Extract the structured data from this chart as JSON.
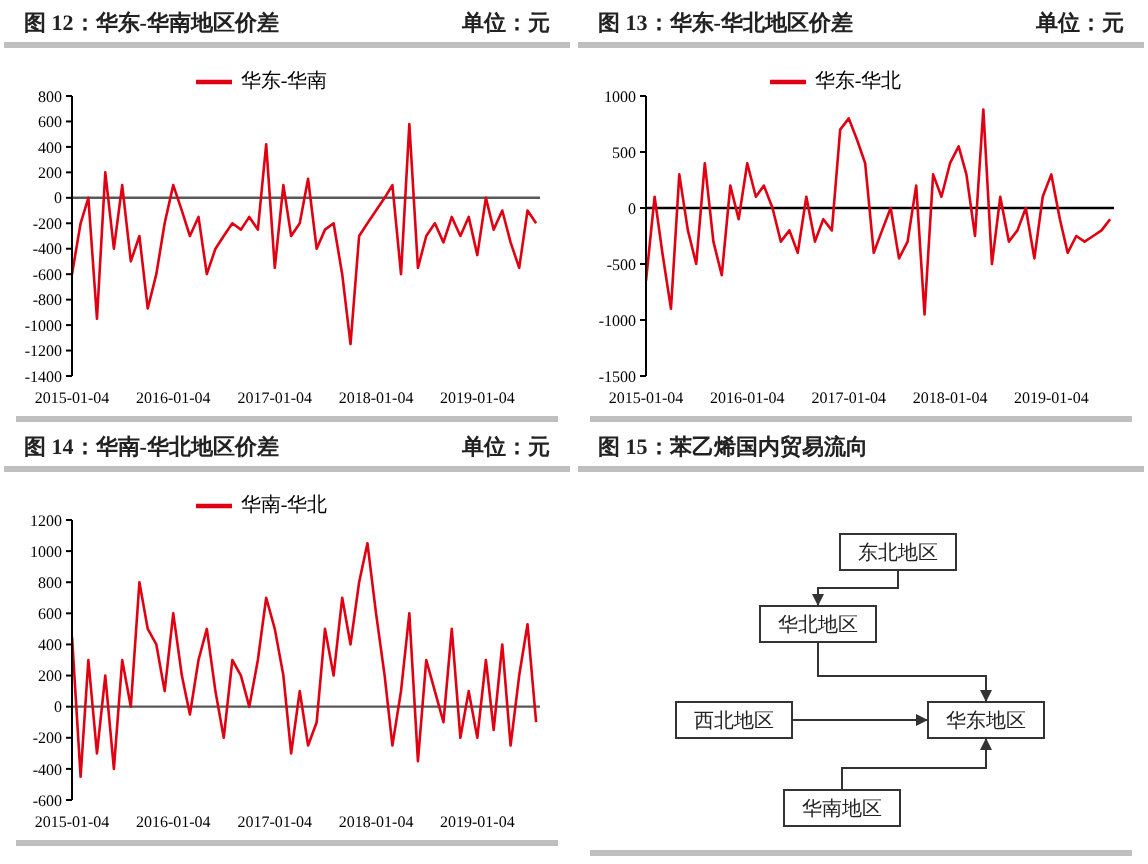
{
  "chart_data": [
    {
      "type": "line",
      "title": "图 12：华东-华南地区价差",
      "annotations": [
        "单位：元"
      ],
      "legend": "top",
      "x": [
        "2015-01-04",
        "2015-02-04",
        "2015-03-04",
        "2015-04-04",
        "2015-05-04",
        "2015-06-04",
        "2015-07-04",
        "2015-08-04",
        "2015-09-04",
        "2015-10-04",
        "2015-11-04",
        "2015-12-04",
        "2016-01-04",
        "2016-02-04",
        "2016-03-04",
        "2016-04-04",
        "2016-05-04",
        "2016-06-04",
        "2016-07-04",
        "2016-08-04",
        "2016-09-04",
        "2016-10-04",
        "2016-11-04",
        "2016-12-04",
        "2017-01-04",
        "2017-02-04",
        "2017-03-04",
        "2017-04-04",
        "2017-05-04",
        "2017-06-04",
        "2017-07-04",
        "2017-08-04",
        "2017-09-04",
        "2017-10-04",
        "2017-11-04",
        "2017-12-04",
        "2018-01-04",
        "2018-02-04",
        "2018-03-04",
        "2018-04-04",
        "2018-05-04",
        "2018-06-04",
        "2018-07-04",
        "2018-08-04",
        "2018-09-04",
        "2018-10-04",
        "2018-11-04",
        "2018-12-04",
        "2019-01-04",
        "2019-02-04",
        "2019-03-04",
        "2019-04-04",
        "2019-05-04",
        "2019-06-04",
        "2019-07-04",
        "2019-08-04"
      ],
      "series": [
        {
          "name": "华东-华南",
          "color": "#e00012",
          "values": [
            -600,
            -200,
            0,
            -950,
            200,
            -400,
            100,
            -500,
            -300,
            -870,
            -600,
            -200,
            100,
            -100,
            -300,
            -150,
            -600,
            -400,
            -300,
            -200,
            -250,
            -150,
            -250,
            420,
            -550,
            100,
            -300,
            -200,
            150,
            -400,
            -250,
            -200,
            -600,
            -1150,
            -300,
            -200,
            -100,
            0,
            100,
            -600,
            580,
            -550,
            -300,
            -200,
            -350,
            -150,
            -300,
            -150,
            -450,
            0,
            -250,
            -100,
            -350,
            -550,
            -100,
            -200
          ]
        }
      ],
      "xlim": [
        "2015-01-04",
        "2019-08-18"
      ],
      "xticks": [
        "2015-01-04",
        "2016-01-04",
        "2017-01-04",
        "2018-01-04",
        "2019-01-04"
      ],
      "ylim": [
        -1400,
        800
      ],
      "yticks": [
        -1400,
        -1200,
        -1000,
        -800,
        -600,
        -400,
        -200,
        0,
        200,
        400,
        600,
        800
      ],
      "ref_lines": [
        {
          "axis": "y",
          "value": 0,
          "color": "#595959"
        }
      ]
    },
    {
      "type": "line",
      "title": "图 13：华东-华北地区价差",
      "annotations": [
        "单位：元"
      ],
      "legend": "top",
      "x": [
        "2015-01-04",
        "2015-02-04",
        "2015-03-04",
        "2015-04-04",
        "2015-05-04",
        "2015-06-04",
        "2015-07-04",
        "2015-08-04",
        "2015-09-04",
        "2015-10-04",
        "2015-11-04",
        "2015-12-04",
        "2016-01-04",
        "2016-02-04",
        "2016-03-04",
        "2016-04-04",
        "2016-05-04",
        "2016-06-04",
        "2016-07-04",
        "2016-08-04",
        "2016-09-04",
        "2016-10-04",
        "2016-11-04",
        "2016-12-04",
        "2017-01-04",
        "2017-02-04",
        "2017-03-04",
        "2017-04-04",
        "2017-05-04",
        "2017-06-04",
        "2017-07-04",
        "2017-08-04",
        "2017-09-04",
        "2017-10-04",
        "2017-11-04",
        "2017-12-04",
        "2018-01-04",
        "2018-02-04",
        "2018-03-04",
        "2018-04-04",
        "2018-05-04",
        "2018-06-04",
        "2018-07-04",
        "2018-08-04",
        "2018-09-04",
        "2018-10-04",
        "2018-11-04",
        "2018-12-04",
        "2019-01-04",
        "2019-02-04",
        "2019-03-04",
        "2019-04-04",
        "2019-05-04",
        "2019-06-04",
        "2019-07-04",
        "2019-08-04"
      ],
      "series": [
        {
          "name": "华东-华北",
          "color": "#e00012",
          "values": [
            -650,
            100,
            -400,
            -900,
            300,
            -200,
            -500,
            400,
            -300,
            -600,
            200,
            -100,
            400,
            100,
            200,
            0,
            -300,
            -200,
            -400,
            100,
            -300,
            -100,
            -200,
            700,
            800,
            600,
            400,
            -400,
            -200,
            0,
            -450,
            -300,
            200,
            -950,
            300,
            100,
            400,
            550,
            300,
            -250,
            880,
            -500,
            100,
            -300,
            -200,
            0,
            -450,
            100,
            300,
            -100,
            -400,
            -250,
            -300,
            -250,
            -200,
            -100
          ]
        }
      ],
      "xlim": [
        "2015-01-04",
        "2019-08-18"
      ],
      "xticks": [
        "2015-01-04",
        "2016-01-04",
        "2017-01-04",
        "2018-01-04",
        "2019-01-04"
      ],
      "ylim": [
        -1500,
        1000
      ],
      "yticks": [
        -1500,
        -1000,
        -500,
        0,
        500,
        1000
      ],
      "ref_lines": [
        {
          "axis": "y",
          "value": 0,
          "color": "#000000"
        }
      ]
    },
    {
      "type": "line",
      "title": "图 14：华南-华北地区价差",
      "annotations": [
        "单位：元"
      ],
      "legend": "top",
      "x": [
        "2015-01-04",
        "2015-02-04",
        "2015-03-04",
        "2015-04-04",
        "2015-05-04",
        "2015-06-04",
        "2015-07-04",
        "2015-08-04",
        "2015-09-04",
        "2015-10-04",
        "2015-11-04",
        "2015-12-04",
        "2016-01-04",
        "2016-02-04",
        "2016-03-04",
        "2016-04-04",
        "2016-05-04",
        "2016-06-04",
        "2016-07-04",
        "2016-08-04",
        "2016-09-04",
        "2016-10-04",
        "2016-11-04",
        "2016-12-04",
        "2017-01-04",
        "2017-02-04",
        "2017-03-04",
        "2017-04-04",
        "2017-05-04",
        "2017-06-04",
        "2017-07-04",
        "2017-08-04",
        "2017-09-04",
        "2017-10-04",
        "2017-11-04",
        "2017-12-04",
        "2018-01-04",
        "2018-02-04",
        "2018-03-04",
        "2018-04-04",
        "2018-05-04",
        "2018-06-04",
        "2018-07-04",
        "2018-08-04",
        "2018-09-04",
        "2018-10-04",
        "2018-11-04",
        "2018-12-04",
        "2019-01-04",
        "2019-02-04",
        "2019-03-04",
        "2019-04-04",
        "2019-05-04",
        "2019-06-04",
        "2019-07-04",
        "2019-08-04"
      ],
      "series": [
        {
          "name": "华南-华北",
          "color": "#e00012",
          "values": [
            450,
            -450,
            300,
            -300,
            200,
            -400,
            300,
            0,
            800,
            500,
            400,
            100,
            600,
            200,
            -50,
            300,
            500,
            100,
            -200,
            300,
            200,
            0,
            300,
            700,
            500,
            200,
            -300,
            100,
            -250,
            -100,
            500,
            200,
            700,
            400,
            800,
            1050,
            600,
            200,
            -250,
            100,
            600,
            -350,
            300,
            100,
            -100,
            500,
            -200,
            100,
            -200,
            300,
            -150,
            400,
            -250,
            200,
            530,
            -100
          ]
        }
      ],
      "xlim": [
        "2015-01-04",
        "2019-08-18"
      ],
      "xticks": [
        "2015-01-04",
        "2016-01-04",
        "2017-01-04",
        "2018-01-04",
        "2019-01-04"
      ],
      "ylim": [
        -600,
        1200
      ],
      "yticks": [
        -600,
        -400,
        -200,
        0,
        200,
        400,
        600,
        800,
        1000,
        1200
      ],
      "ref_lines": [
        {
          "axis": "y",
          "value": 0,
          "color": "#595959"
        }
      ]
    },
    {
      "type": "other",
      "title": "图 15：苯乙烯国内贸易流向",
      "annotations": [
        "东北地区",
        "华北地区",
        "西北地区",
        "华东地区",
        "华南地区"
      ]
    }
  ]
}
